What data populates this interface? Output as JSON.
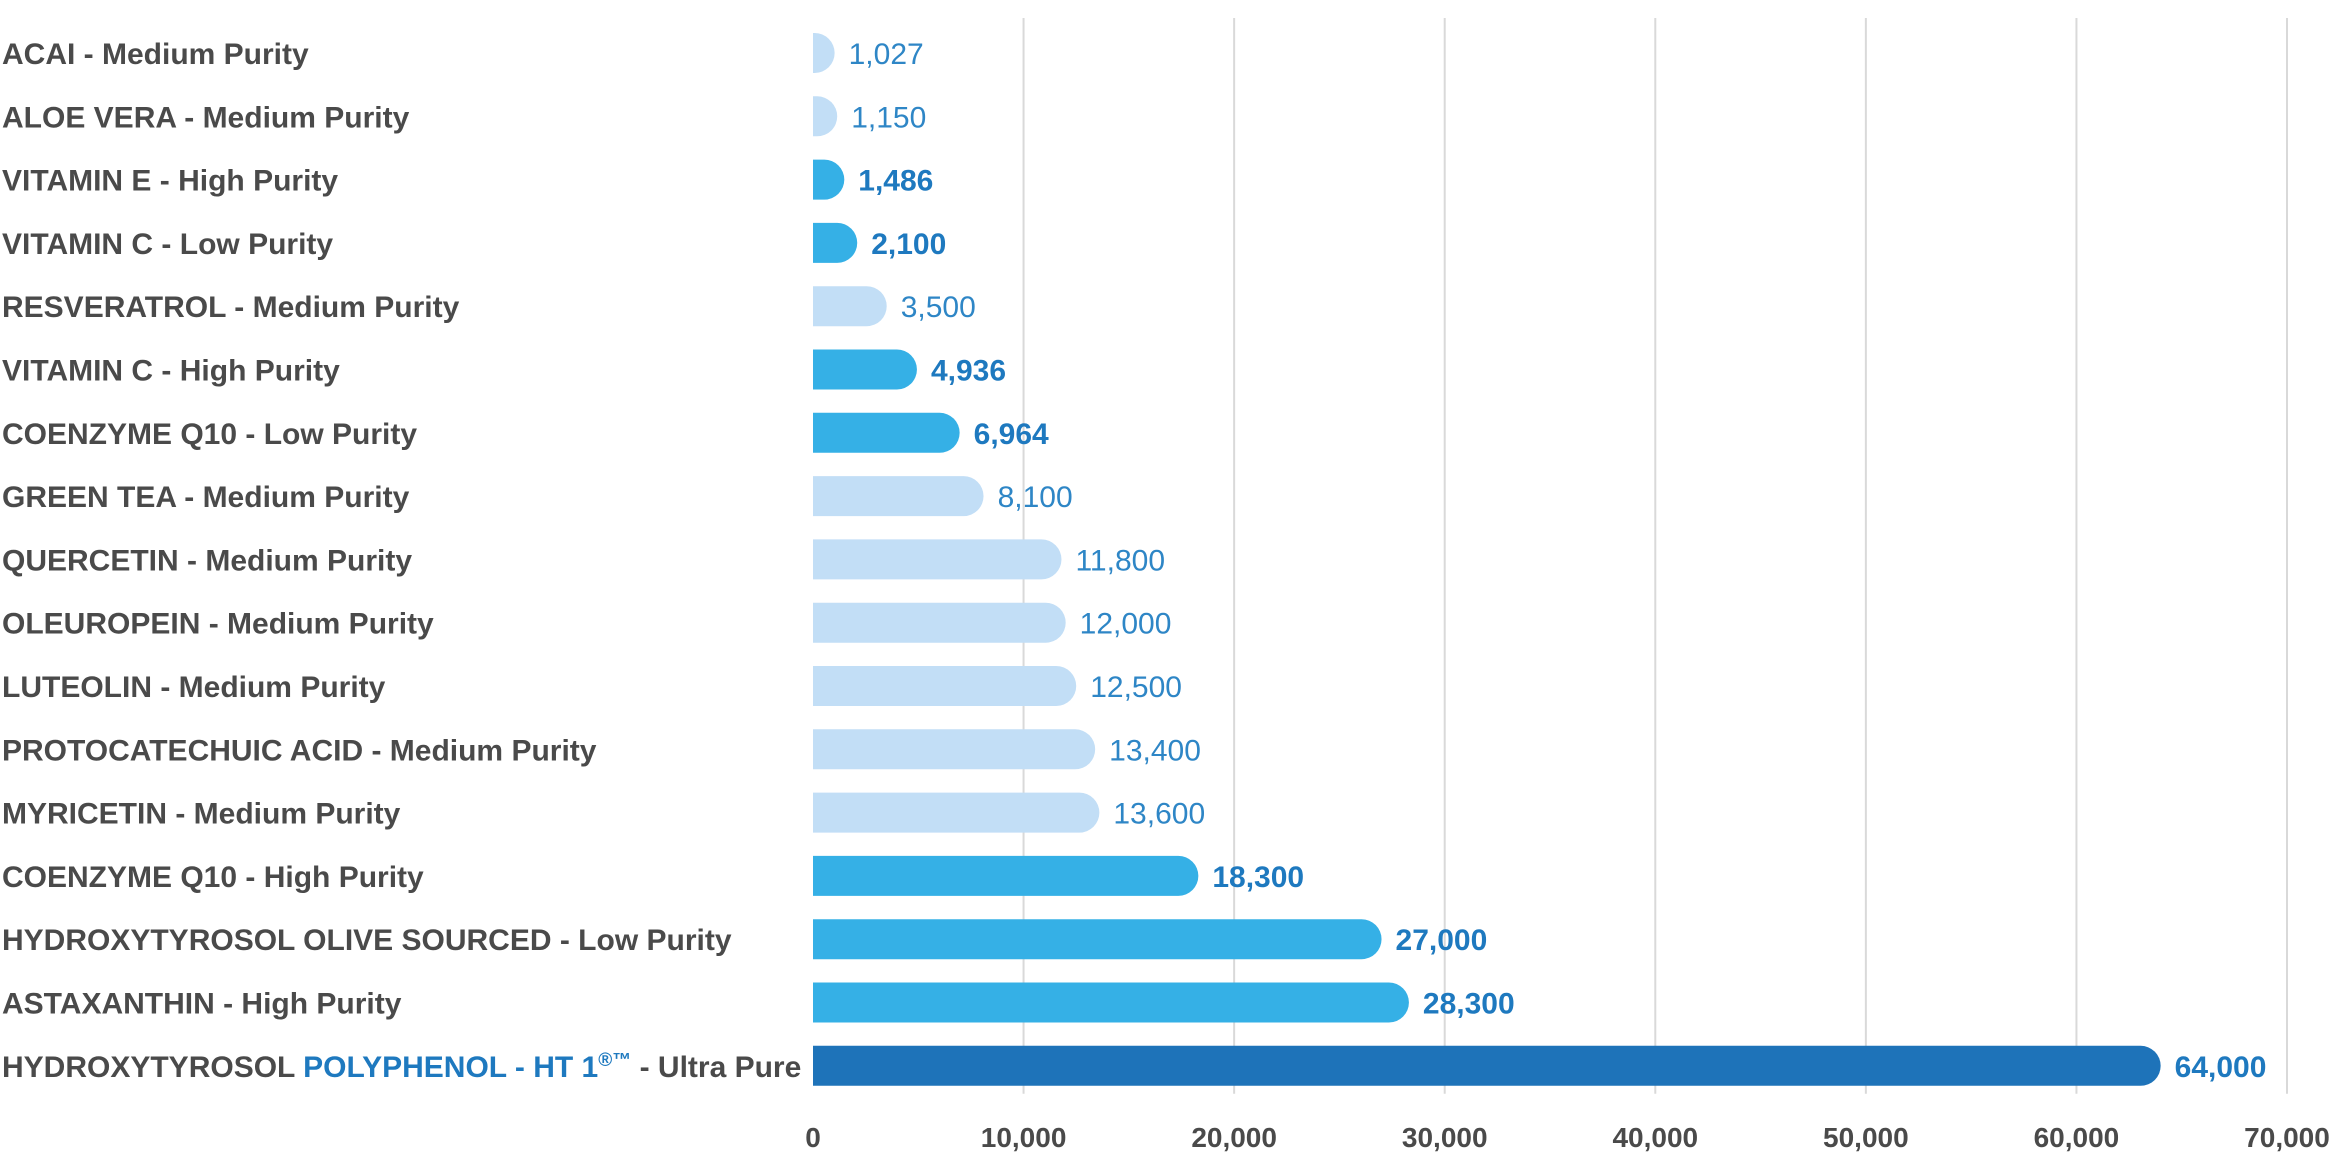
{
  "chart_data": {
    "type": "bar",
    "orientation": "horizontal",
    "grid": true,
    "xlim": [
      0,
      70000
    ],
    "x_ticks": [
      "0",
      "10,000",
      "20,000",
      "30,000",
      "40,000",
      "50,000",
      "60,000",
      "70,000"
    ],
    "x_tick_values": [
      0,
      10000,
      20000,
      30000,
      40000,
      50000,
      60000,
      70000
    ],
    "colors": {
      "light": "#c2def6",
      "medium_blue": "#35b0e6",
      "dark_blue": "#1e73b9",
      "light_value_text": "#2e86c6",
      "bold_value_text": "#1e79bf",
      "label_text": "#4a4a4a",
      "grid": "#d9d9d9"
    },
    "bars": [
      {
        "label_parts": [
          {
            "text": "ACAI - Medium Purity",
            "hl": false
          }
        ],
        "value": 1027,
        "value_label": "1,027",
        "style": "light"
      },
      {
        "label_parts": [
          {
            "text": "ALOE VERA - Medium Purity",
            "hl": false
          }
        ],
        "value": 1150,
        "value_label": "1,150",
        "style": "light"
      },
      {
        "label_parts": [
          {
            "text": "VITAMIN E - High Purity",
            "hl": false
          }
        ],
        "value": 1486,
        "value_label": "1,486",
        "style": "medium"
      },
      {
        "label_parts": [
          {
            "text": "VITAMIN C - Low Purity",
            "hl": false
          }
        ],
        "value": 2100,
        "value_label": "2,100",
        "style": "medium"
      },
      {
        "label_parts": [
          {
            "text": "RESVERATROL - Medium Purity",
            "hl": false
          }
        ],
        "value": 3500,
        "value_label": "3,500",
        "style": "light"
      },
      {
        "label_parts": [
          {
            "text": "VITAMIN C - High Purity",
            "hl": false
          }
        ],
        "value": 4936,
        "value_label": "4,936",
        "style": "medium"
      },
      {
        "label_parts": [
          {
            "text": "COENZYME Q10 - Low Purity",
            "hl": false
          }
        ],
        "value": 6964,
        "value_label": "6,964",
        "style": "medium"
      },
      {
        "label_parts": [
          {
            "text": "GREEN TEA - Medium Purity",
            "hl": false
          }
        ],
        "value": 8100,
        "value_label": "8,100",
        "style": "light"
      },
      {
        "label_parts": [
          {
            "text": "QUERCETIN - Medium Purity",
            "hl": false
          }
        ],
        "value": 11800,
        "value_label": "11,800",
        "style": "light"
      },
      {
        "label_parts": [
          {
            "text": "OLEUROPEIN - Medium Purity",
            "hl": false
          }
        ],
        "value": 12000,
        "value_label": "12,000",
        "style": "light"
      },
      {
        "label_parts": [
          {
            "text": "LUTEOLIN - Medium Purity",
            "hl": false
          }
        ],
        "value": 12500,
        "value_label": "12,500",
        "style": "light"
      },
      {
        "label_parts": [
          {
            "text": "PROTOCATECHUIC ACID - Medium Purity",
            "hl": false
          }
        ],
        "value": 13400,
        "value_label": "13,400",
        "style": "light"
      },
      {
        "label_parts": [
          {
            "text": "MYRICETIN - Medium Purity",
            "hl": false
          }
        ],
        "value": 13600,
        "value_label": "13,600",
        "style": "light"
      },
      {
        "label_parts": [
          {
            "text": "COENZYME Q10 - High Purity",
            "hl": false
          }
        ],
        "value": 18300,
        "value_label": "18,300",
        "style": "medium"
      },
      {
        "label_parts": [
          {
            "text": "HYDROXYTYROSOL OLIVE SOURCED - Low Purity",
            "hl": false
          }
        ],
        "value": 27000,
        "value_label": "27,000",
        "style": "medium"
      },
      {
        "label_parts": [
          {
            "text": "ASTAXANTHIN - High Purity",
            "hl": false
          }
        ],
        "value": 28300,
        "value_label": "28,300",
        "style": "medium"
      },
      {
        "label_parts": [
          {
            "text": "HYDROXYTYROSOL ",
            "hl": false
          },
          {
            "text": "POLYPHENOL - HT 1",
            "hl": true
          },
          {
            "text": "®™",
            "hl": true,
            "sup": true
          },
          {
            "text": " - Ultra Pure",
            "hl": false
          }
        ],
        "value": 64000,
        "value_label": "64,000",
        "style": "dark"
      }
    ]
  }
}
